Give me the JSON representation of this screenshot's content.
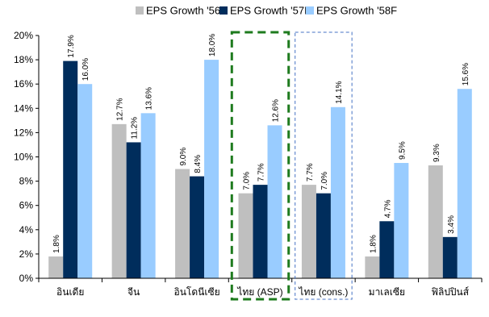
{
  "chart_data": {
    "type": "bar",
    "categories": [
      "อินเดีย",
      "จีน",
      "อินโดนีเซีย",
      "ไทย (ASP)",
      "ไทย (cons.)",
      "มาเลเซีย",
      "ฟิลิปปินส์"
    ],
    "series": [
      {
        "name": "EPS Growth '56",
        "values": [
          1.8,
          12.7,
          9.0,
          7.0,
          7.7,
          1.8,
          9.3
        ],
        "labels": [
          "1.8%",
          "12.7%",
          "9.0%",
          "7.0%",
          "7.7%",
          "1.8%",
          "9.3%"
        ],
        "color": "#BFBFBF"
      },
      {
        "name": "EPS Growth '57F",
        "values": [
          17.9,
          11.2,
          8.4,
          7.7,
          7.0,
          4.7,
          3.4
        ],
        "labels": [
          "17.9%",
          "11.2%",
          "8.4%",
          "7.7%",
          "7.0%",
          "4.7%",
          "3.4%"
        ],
        "color": "#002D5C"
      },
      {
        "name": "EPS Growth '58F",
        "values": [
          16.0,
          13.6,
          18.0,
          12.6,
          14.1,
          9.5,
          15.6
        ],
        "labels": [
          "16.0%",
          "13.6%",
          "18.0%",
          "12.6%",
          "14.1%",
          "9.5%",
          "15.6%"
        ],
        "color": "#99CCFF"
      }
    ],
    "ylim": [
      0,
      20
    ],
    "yticks": [
      0,
      2,
      4,
      6,
      8,
      10,
      12,
      14,
      16,
      18,
      20
    ],
    "ytick_labels": [
      "0%",
      "2%",
      "4%",
      "6%",
      "8%",
      "10%",
      "12%",
      "14%",
      "16%",
      "18%",
      "20%"
    ],
    "grid": false,
    "legend_position": "top",
    "highlights": [
      {
        "category_index": 3,
        "style": "dashed",
        "color": "#1E7B1E"
      },
      {
        "category_index": 4,
        "style": "dashed",
        "color": "#4472C4"
      }
    ]
  }
}
